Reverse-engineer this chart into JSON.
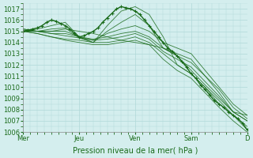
{
  "title": "",
  "xlabel": "Pression niveau de la mer( hPa )",
  "ylabel": "",
  "ylim": [
    1006,
    1017.5
  ],
  "yticks": [
    1006,
    1007,
    1008,
    1009,
    1010,
    1011,
    1012,
    1013,
    1014,
    1015,
    1016,
    1017
  ],
  "xtick_labels": [
    "Mer",
    "Jeu",
    "Ven",
    "Sam",
    "D"
  ],
  "xtick_positions": [
    0,
    24,
    48,
    72,
    96
  ],
  "background_color": "#d4eeee",
  "grid_color": "#b0d8d8",
  "line_color": "#1a6b1a",
  "text_color": "#1a6b1a",
  "total_hours": 96,
  "series": [
    {
      "x": [
        0,
        6,
        12,
        18,
        24,
        30,
        36,
        42,
        48,
        54,
        60,
        66,
        72,
        78,
        84,
        90,
        96
      ],
      "y": [
        1015.0,
        1015.2,
        1015.5,
        1015.8,
        1014.5,
        1014.0,
        1015.5,
        1016.8,
        1017.2,
        1016.5,
        1014.5,
        1012.0,
        1011.2,
        1010.0,
        1008.5,
        1007.5,
        1006.2
      ]
    },
    {
      "x": [
        0,
        6,
        12,
        18,
        24,
        30,
        36,
        42,
        48,
        54,
        60,
        66,
        72,
        78,
        84,
        90,
        96
      ],
      "y": [
        1015.0,
        1015.0,
        1015.2,
        1015.3,
        1014.4,
        1014.0,
        1015.0,
        1015.8,
        1016.5,
        1015.5,
        1013.5,
        1013.0,
        1012.5,
        1011.0,
        1009.5,
        1007.8,
        1007.0
      ]
    },
    {
      "x": [
        0,
        6,
        12,
        18,
        24,
        30,
        36,
        42,
        48,
        54,
        60,
        66,
        72,
        78,
        84,
        90,
        96
      ],
      "y": [
        1015.1,
        1015.0,
        1015.0,
        1015.0,
        1014.5,
        1014.2,
        1014.8,
        1015.2,
        1015.5,
        1015.0,
        1014.0,
        1013.5,
        1013.0,
        1011.5,
        1010.0,
        1008.5,
        1007.5
      ]
    },
    {
      "x": [
        0,
        6,
        12,
        18,
        24,
        30,
        36,
        42,
        48,
        54,
        60,
        66,
        72,
        78,
        84,
        90,
        96
      ],
      "y": [
        1015.2,
        1015.0,
        1014.8,
        1014.8,
        1014.5,
        1014.3,
        1014.5,
        1014.8,
        1015.0,
        1014.5,
        1013.5,
        1012.8,
        1012.2,
        1011.0,
        1009.8,
        1008.2,
        1007.2
      ]
    },
    {
      "x": [
        0,
        6,
        12,
        18,
        24,
        30,
        36,
        42,
        48,
        54,
        60,
        66,
        72,
        78,
        84,
        90,
        96
      ],
      "y": [
        1015.0,
        1015.0,
        1014.8,
        1014.6,
        1014.4,
        1014.2,
        1014.3,
        1014.5,
        1014.8,
        1014.3,
        1013.2,
        1012.5,
        1011.8,
        1010.5,
        1009.2,
        1007.8,
        1007.0
      ]
    },
    {
      "x": [
        0,
        6,
        12,
        18,
        24,
        30,
        36,
        42,
        48,
        54,
        60,
        66,
        72,
        78,
        84,
        90,
        96
      ],
      "y": [
        1015.0,
        1014.8,
        1014.5,
        1014.3,
        1014.2,
        1014.0,
        1014.0,
        1014.2,
        1014.5,
        1014.0,
        1013.0,
        1012.0,
        1011.2,
        1010.0,
        1008.8,
        1007.5,
        1006.5
      ]
    },
    {
      "x": [
        0,
        6,
        12,
        18,
        24,
        30,
        36,
        42,
        48,
        54,
        60,
        66,
        72,
        78,
        84,
        90,
        96
      ],
      "y": [
        1015.0,
        1014.8,
        1014.5,
        1014.2,
        1014.0,
        1013.8,
        1013.8,
        1014.0,
        1014.2,
        1013.8,
        1012.5,
        1011.5,
        1010.8,
        1009.5,
        1008.2,
        1007.0,
        1006.0
      ]
    },
    {
      "x": [
        0,
        6,
        12,
        18,
        24,
        30,
        36,
        42,
        48,
        54,
        60,
        66,
        72,
        78,
        84,
        90,
        96
      ],
      "y": [
        1015.2,
        1015.0,
        1015.0,
        1015.2,
        1015.0,
        1014.8,
        1014.5,
        1014.2,
        1014.0,
        1013.8,
        1013.5,
        1012.8,
        1011.5,
        1010.2,
        1009.0,
        1007.8,
        1007.5
      ]
    }
  ],
  "detailed_series_x": [
    0,
    2,
    4,
    6,
    8,
    10,
    12,
    14,
    16,
    18,
    20,
    22,
    24,
    26,
    28,
    30,
    32,
    34,
    36,
    38,
    40,
    42,
    44,
    46,
    48,
    50,
    52,
    54,
    56,
    58,
    60,
    62,
    64,
    66,
    68,
    70,
    72,
    74,
    76,
    78,
    80,
    82,
    84,
    86,
    88,
    90,
    92,
    94,
    96
  ],
  "detailed_series_y": [
    1015.0,
    1015.1,
    1015.2,
    1015.3,
    1015.5,
    1015.8,
    1016.0,
    1015.9,
    1015.7,
    1015.5,
    1015.2,
    1014.8,
    1014.5,
    1014.6,
    1014.8,
    1015.0,
    1015.3,
    1015.8,
    1016.2,
    1016.6,
    1017.0,
    1017.2,
    1017.1,
    1017.0,
    1016.8,
    1016.5,
    1016.0,
    1015.5,
    1015.0,
    1014.5,
    1014.0,
    1013.5,
    1013.2,
    1012.8,
    1012.3,
    1011.8,
    1011.2,
    1010.8,
    1010.2,
    1009.8,
    1009.3,
    1008.8,
    1008.5,
    1008.2,
    1007.8,
    1007.5,
    1007.2,
    1006.8,
    1006.2
  ]
}
